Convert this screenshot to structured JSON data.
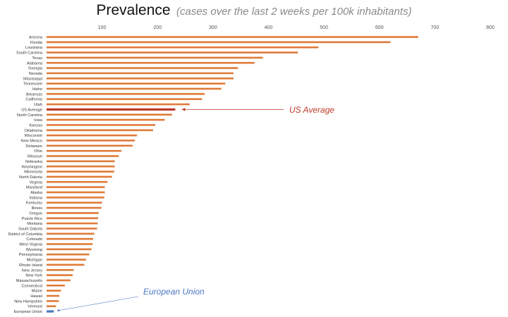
{
  "title": {
    "main": "Prevalence",
    "subtitle": "(cases over the last 2 weeks per 100k inhabitants)"
  },
  "colors": {
    "bar": "#E07B39",
    "highlight": "#C0392B",
    "eu": "#4A78C2",
    "annotation_us": "#C0392B",
    "annotation_eu": "#4A78C2"
  },
  "chart_data": {
    "type": "bar",
    "orientation": "horizontal",
    "title": "Prevalence (cases over the last 2 weeks per 100k inhabitants)",
    "xlim": [
      0,
      800
    ],
    "x_ticks": [
      0,
      100,
      200,
      300,
      400,
      500,
      600,
      700,
      800
    ],
    "x_tick_labels": [
      "",
      "100",
      "200",
      "300",
      "400",
      "500",
      "600",
      "700",
      "800"
    ],
    "grid": false,
    "categories": [
      "Arizona",
      "Florida",
      "Louisiana",
      "South Carolina",
      "Texas",
      "Alabama",
      "Georgia",
      "Nevada",
      "Mississippi",
      "Tennessee",
      "Idaho",
      "Arkansas",
      "California",
      "Utah",
      "US Average",
      "North Carolina",
      "Iowa",
      "Kansas",
      "Oklahoma",
      "Wisconsin",
      "New Mexico",
      "Delaware",
      "Ohio",
      "Missouri",
      "Nebraska",
      "Washington",
      "Minnesota",
      "North Dakota",
      "Virginia",
      "Maryland",
      "Alaska",
      "Indiana",
      "Kentucky",
      "Illinois",
      "Oregon",
      "Puerto Rico",
      "Montana",
      "South Dakota",
      "District of Columbia",
      "Colorado",
      "West Virginia",
      "Wyoming",
      "Pennsylvania",
      "Michigan",
      "Rhode Island",
      "New Jersey",
      "New York",
      "Massachusetts",
      "Connecticut",
      "Maine",
      "Hawaii",
      "New Hampshire",
      "Vermont",
      "European Union"
    ],
    "values": [
      670,
      620,
      490,
      453,
      390,
      375,
      345,
      337,
      337,
      322,
      315,
      285,
      280,
      258,
      232,
      226,
      213,
      196,
      192,
      163,
      159,
      155,
      135,
      130,
      123,
      123,
      122,
      118,
      110,
      105,
      105,
      104,
      100,
      99,
      94,
      93,
      92,
      91,
      86,
      84,
      83,
      81,
      77,
      71,
      68,
      49,
      47,
      43,
      33,
      26,
      23,
      22,
      17,
      13
    ],
    "highlighted": {
      "US Average": "highlight",
      "European Union": "eu"
    },
    "annotations": [
      {
        "text": "US Average",
        "target": "US Average"
      },
      {
        "text": "European Union",
        "target": "European Union"
      }
    ]
  }
}
